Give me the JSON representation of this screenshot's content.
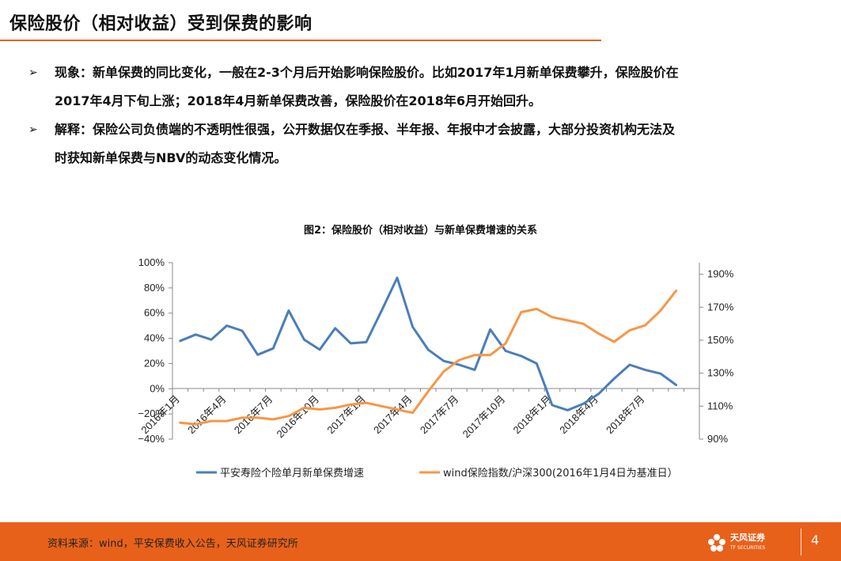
{
  "slide": {
    "title": "保险股价（相对收益）受到保费的影响",
    "page_number": "4",
    "bullet_marker": "➢",
    "bullets": [
      {
        "lines": [
          "现象：新单保费的同比变化，一般在2-3个月后开始影响保险股价。比如2017年1月新单保费攀升，保险股价在",
          "2017年4月下旬上涨；2018年4月新单保费改善，保险股价在2018年6月开始回升。"
        ]
      },
      {
        "lines": [
          "解释：保险公司负债端的不透明性很强，公开数据仅在季报、半年报、年报中才会披露，大部分投资机构无法及",
          "时获知新单保费与NBV的动态变化情况。"
        ]
      }
    ],
    "source": "资料来源：wind，平安保费收入公告，天风证券研究所",
    "logo_text": "天风证券",
    "logo_sub": "TF SECURITIES"
  },
  "chart_data": {
    "type": "line",
    "title": "图2：保险股价（相对收益）与新单保费增速的关系",
    "x": [
      "2016年1月",
      "2016年2月",
      "2016年3月",
      "2016年4月",
      "2016年5月",
      "2016年6月",
      "2016年7月",
      "2016年8月",
      "2016年9月",
      "2016年10月",
      "2016年11月",
      "2016年12月",
      "2017年1月",
      "2017年2月",
      "2017年3月",
      "2017年4月",
      "2017年5月",
      "2017年6月",
      "2017年7月",
      "2017年8月",
      "2017年9月",
      "2017年10月",
      "2017年11月",
      "2017年12月",
      "2018年1月",
      "2018年2月",
      "2018年3月",
      "2018年4月",
      "2018年5月",
      "2018年6月",
      "2018年7月",
      "2018年8月",
      "2018年9月",
      "2018年10月"
    ],
    "x_tick_labels": [
      "2016年1月",
      "2016年4月",
      "2016年7月",
      "2016年10月",
      "2017年1月",
      "2017年4月",
      "2017年7月",
      "2017年10月",
      "2018年1月",
      "2018年4月",
      "2018年7月"
    ],
    "y_left": {
      "ticks": [
        "100%",
        "80%",
        "60%",
        "40%",
        "20%",
        "0%",
        "−20%",
        "−40%"
      ],
      "min": -40,
      "max": 100
    },
    "y_right": {
      "ticks": [
        "190%",
        "170%",
        "150%",
        "130%",
        "110%",
        "90%"
      ],
      "min": 90,
      "max": 197
    },
    "series": [
      {
        "name": "平安寿险个险单月新单保费增速",
        "axis": "left",
        "color": "#4a7ebb",
        "values": [
          38,
          43,
          39,
          50,
          46,
          27,
          32,
          62,
          39,
          31,
          48,
          36,
          37,
          62,
          88,
          49,
          31,
          22,
          19,
          15,
          47,
          30,
          26,
          20,
          -13,
          -17,
          -12,
          -4,
          8,
          19,
          15,
          12,
          3,
          null
        ]
      },
      {
        "name": "wind保险指数/沪深300(2016年1月4日为基准日）",
        "axis": "right",
        "color": "#f79646",
        "values": [
          100,
          99,
          101,
          101,
          103,
          103,
          102,
          104,
          109,
          108,
          109,
          111,
          112,
          110,
          108,
          106,
          119,
          131,
          138,
          141,
          141,
          148,
          167,
          169,
          164,
          162,
          160,
          154,
          149,
          156,
          159,
          168,
          180,
          null
        ]
      }
    ],
    "legend_position": "bottom",
    "grid": false
  }
}
